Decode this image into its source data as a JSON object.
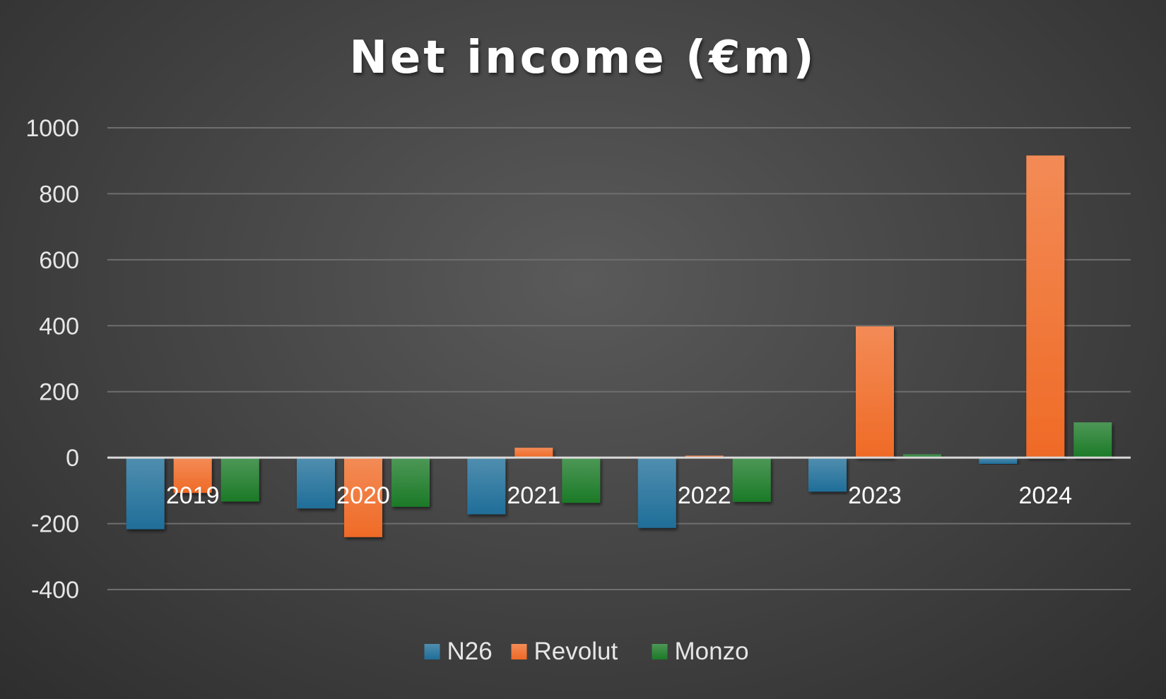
{
  "chart_data": {
    "type": "bar",
    "title": "Net income (€m)",
    "xlabel": "",
    "ylabel": "",
    "categories": [
      "2019",
      "2020",
      "2021",
      "2022",
      "2023",
      "2024"
    ],
    "series": [
      {
        "name": "N26",
        "color": "#1f6e99",
        "values": [
          -217,
          -154,
          -172,
          -213,
          -103,
          -19
        ]
      },
      {
        "name": "Revolut",
        "color": "#ef6a26",
        "values": [
          -107,
          -241,
          30,
          6,
          398,
          916
        ]
      },
      {
        "name": "Monzo",
        "color": "#1b7a27",
        "values": [
          -133,
          -149,
          -137,
          -134,
          10,
          107
        ]
      }
    ],
    "ylim": [
      -400,
      1000
    ],
    "yticks": [
      "1000",
      "800",
      "600",
      "400",
      "200",
      "0",
      "-200",
      "-400"
    ],
    "grid": true,
    "legend_position": "bottom"
  }
}
